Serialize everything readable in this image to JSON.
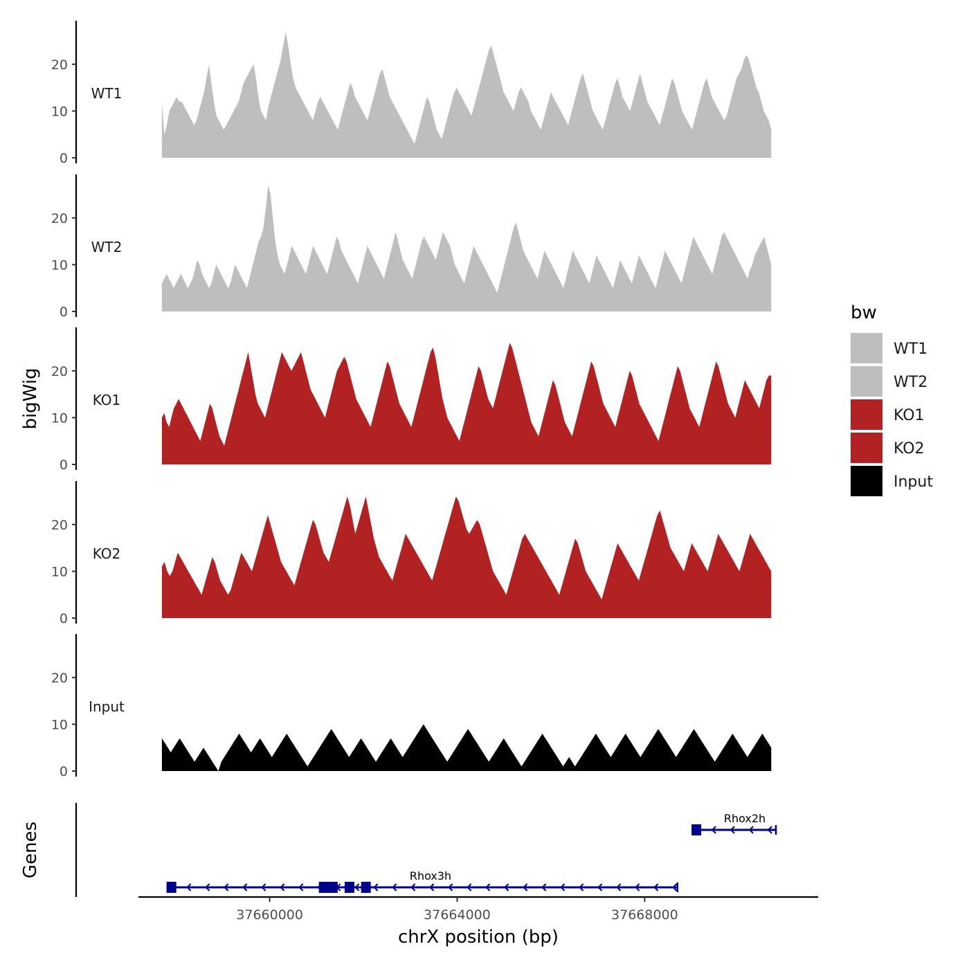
{
  "chart_data": {
    "type": "area",
    "title": "",
    "ylabel": "bigWig",
    "genes_ylabel": "Genes",
    "xlabel": "chrX position (bp)",
    "xlim": [
      37657200,
      37671700
    ],
    "x_start": 37657700,
    "x_end": 37670700,
    "x_ticks": [
      37660000,
      37664000,
      37668000
    ],
    "x_tick_labels": [
      "37660000",
      "37664000",
      "37668000"
    ],
    "ylim": [
      0,
      29
    ],
    "y_ticks": [
      0,
      10,
      20
    ],
    "y_tick_labels": [
      "0",
      "10",
      "20"
    ],
    "legend": {
      "title": "bw",
      "position": "right",
      "entries": [
        {
          "name": "WT1",
          "color": "#bebebe"
        },
        {
          "name": "WT2",
          "color": "#bebebe"
        },
        {
          "name": "KO1",
          "color": "#b22222"
        },
        {
          "name": "KO2",
          "color": "#b22222"
        },
        {
          "name": "Input",
          "color": "#000000"
        }
      ]
    },
    "series": [
      {
        "name": "WT1",
        "color": "#bebebe",
        "values": [
          12,
          5,
          7,
          10,
          11,
          12,
          13,
          12,
          12,
          11,
          10,
          9,
          8,
          7,
          8,
          10,
          12,
          14,
          17,
          20,
          16,
          12,
          9,
          8,
          7,
          6,
          7,
          8,
          9,
          10,
          11,
          12,
          14,
          16,
          17,
          18,
          19,
          20,
          17,
          13,
          10,
          9,
          8,
          11,
          13,
          15,
          17,
          19,
          21,
          24,
          27,
          24,
          20,
          17,
          15,
          14,
          13,
          12,
          11,
          10,
          9,
          8,
          10,
          12,
          13,
          12,
          11,
          10,
          9,
          8,
          7,
          6,
          8,
          10,
          12,
          14,
          16,
          15,
          13,
          12,
          11,
          10,
          9,
          8,
          10,
          12,
          14,
          16,
          18,
          19,
          17,
          15,
          13,
          12,
          11,
          10,
          9,
          8,
          7,
          6,
          5,
          4,
          3,
          5,
          7,
          9,
          11,
          13,
          12,
          10,
          8,
          6,
          5,
          4,
          6,
          8,
          10,
          12,
          14,
          15,
          14,
          13,
          12,
          11,
          10,
          9,
          11,
          13,
          15,
          17,
          19,
          21,
          23,
          24,
          22,
          20,
          18,
          16,
          14,
          13,
          12,
          11,
          10,
          12,
          14,
          15,
          14,
          13,
          12,
          10,
          9,
          8,
          7,
          6,
          8,
          10,
          12,
          14,
          13,
          12,
          11,
          10,
          9,
          8,
          7,
          9,
          11,
          13,
          15,
          17,
          18,
          16,
          14,
          12,
          10,
          9,
          8,
          7,
          6,
          8,
          10,
          12,
          14,
          16,
          17,
          15,
          13,
          12,
          11,
          10,
          12,
          14,
          16,
          18,
          16,
          14,
          12,
          11,
          10,
          9,
          8,
          7,
          9,
          11,
          13,
          15,
          17,
          16,
          14,
          12,
          10,
          9,
          8,
          7,
          6,
          8,
          10,
          12,
          14,
          16,
          17,
          15,
          13,
          12,
          11,
          10,
          9,
          8,
          9,
          11,
          13,
          15,
          17,
          18,
          19,
          21,
          22,
          21,
          19,
          17,
          15,
          14,
          12,
          10,
          9,
          8,
          6
        ]
      },
      {
        "name": "WT2",
        "color": "#bebebe",
        "values": [
          6,
          7,
          8,
          7,
          6,
          5,
          6,
          7,
          8,
          7,
          6,
          5,
          6,
          7,
          9,
          11,
          10,
          8,
          7,
          6,
          5,
          6,
          8,
          10,
          9,
          8,
          7,
          6,
          5,
          6,
          8,
          10,
          9,
          8,
          7,
          6,
          5,
          7,
          9,
          11,
          13,
          15,
          16,
          18,
          22,
          27,
          25,
          20,
          15,
          12,
          10,
          9,
          8,
          10,
          12,
          14,
          13,
          12,
          11,
          10,
          9,
          8,
          10,
          12,
          14,
          13,
          12,
          11,
          10,
          9,
          8,
          10,
          12,
          14,
          16,
          15,
          13,
          12,
          11,
          10,
          9,
          8,
          7,
          6,
          8,
          10,
          12,
          14,
          13,
          12,
          11,
          10,
          9,
          8,
          7,
          9,
          11,
          13,
          15,
          17,
          15,
          13,
          11,
          10,
          9,
          8,
          7,
          9,
          11,
          13,
          15,
          16,
          15,
          14,
          13,
          12,
          11,
          13,
          15,
          17,
          16,
          15,
          14,
          12,
          10,
          9,
          8,
          7,
          6,
          8,
          10,
          12,
          14,
          13,
          12,
          11,
          10,
          9,
          8,
          7,
          6,
          5,
          4,
          6,
          8,
          10,
          12,
          14,
          16,
          18,
          19,
          17,
          15,
          13,
          12,
          11,
          10,
          9,
          8,
          7,
          9,
          11,
          13,
          12,
          11,
          10,
          9,
          8,
          7,
          6,
          5,
          7,
          9,
          11,
          13,
          12,
          11,
          10,
          9,
          8,
          7,
          6,
          8,
          10,
          12,
          11,
          10,
          9,
          8,
          7,
          6,
          5,
          7,
          9,
          11,
          10,
          9,
          8,
          7,
          6,
          8,
          10,
          12,
          11,
          10,
          9,
          8,
          7,
          6,
          5,
          7,
          9,
          11,
          13,
          12,
          11,
          10,
          9,
          8,
          7,
          6,
          8,
          10,
          12,
          14,
          16,
          15,
          14,
          13,
          12,
          11,
          10,
          9,
          8,
          10,
          12,
          14,
          16,
          17,
          16,
          15,
          14,
          13,
          12,
          11,
          10,
          9,
          8,
          7,
          9,
          10,
          12,
          13,
          14,
          15,
          16,
          14,
          12,
          10
        ]
      },
      {
        "name": "KO1",
        "color": "#b22222",
        "values": [
          10,
          11,
          9,
          8,
          10,
          12,
          13,
          14,
          13,
          12,
          11,
          10,
          9,
          8,
          7,
          6,
          5,
          7,
          9,
          11,
          13,
          12,
          10,
          8,
          6,
          5,
          4,
          6,
          8,
          10,
          12,
          14,
          16,
          18,
          20,
          22,
          24,
          21,
          18,
          15,
          13,
          12,
          11,
          10,
          12,
          14,
          16,
          18,
          20,
          22,
          24,
          23,
          22,
          21,
          20,
          21,
          22,
          23,
          24,
          22,
          20,
          18,
          16,
          15,
          14,
          13,
          12,
          11,
          10,
          12,
          14,
          16,
          18,
          20,
          21,
          22,
          23,
          22,
          20,
          18,
          16,
          14,
          13,
          12,
          11,
          10,
          9,
          8,
          10,
          12,
          14,
          16,
          18,
          20,
          22,
          21,
          19,
          17,
          15,
          13,
          12,
          11,
          10,
          9,
          8,
          10,
          12,
          14,
          16,
          18,
          20,
          22,
          24,
          25,
          23,
          20,
          17,
          14,
          12,
          10,
          9,
          8,
          7,
          6,
          5,
          7,
          9,
          11,
          13,
          15,
          17,
          19,
          21,
          20,
          18,
          16,
          14,
          13,
          12,
          14,
          16,
          18,
          20,
          22,
          24,
          26,
          25,
          23,
          21,
          19,
          17,
          15,
          13,
          11,
          9,
          8,
          7,
          6,
          8,
          10,
          12,
          14,
          16,
          18,
          17,
          15,
          13,
          11,
          9,
          8,
          7,
          6,
          8,
          10,
          12,
          14,
          16,
          18,
          20,
          22,
          21,
          19,
          17,
          15,
          13,
          12,
          11,
          10,
          9,
          8,
          10,
          12,
          14,
          16,
          18,
          20,
          19,
          17,
          15,
          13,
          12,
          11,
          10,
          9,
          8,
          7,
          6,
          5,
          7,
          9,
          11,
          13,
          15,
          17,
          19,
          21,
          20,
          18,
          16,
          14,
          12,
          11,
          10,
          9,
          8,
          10,
          12,
          14,
          16,
          18,
          20,
          22,
          21,
          19,
          17,
          15,
          13,
          12,
          11,
          10,
          12,
          14,
          16,
          18,
          17,
          16,
          15,
          14,
          13,
          12,
          14,
          16,
          18,
          19,
          19
        ]
      },
      {
        "name": "KO2",
        "color": "#b22222",
        "values": [
          11,
          12,
          10,
          9,
          10,
          12,
          14,
          13,
          12,
          11,
          10,
          9,
          8,
          7,
          6,
          5,
          7,
          9,
          11,
          13,
          12,
          10,
          8,
          7,
          6,
          5,
          6,
          8,
          10,
          12,
          14,
          13,
          12,
          11,
          10,
          12,
          14,
          16,
          18,
          20,
          22,
          20,
          18,
          16,
          14,
          12,
          11,
          10,
          9,
          8,
          7,
          9,
          11,
          13,
          15,
          17,
          19,
          21,
          20,
          18,
          16,
          14,
          13,
          12,
          14,
          16,
          18,
          20,
          22,
          24,
          26,
          24,
          21,
          18,
          20,
          22,
          24,
          26,
          23,
          20,
          17,
          15,
          13,
          12,
          11,
          10,
          9,
          8,
          10,
          12,
          14,
          16,
          18,
          17,
          16,
          15,
          14,
          13,
          12,
          11,
          10,
          9,
          8,
          10,
          12,
          14,
          16,
          18,
          20,
          22,
          24,
          26,
          25,
          23,
          21,
          19,
          18,
          19,
          20,
          21,
          20,
          18,
          16,
          14,
          12,
          10,
          9,
          8,
          7,
          6,
          5,
          7,
          9,
          11,
          13,
          15,
          17,
          18,
          17,
          16,
          15,
          14,
          13,
          12,
          11,
          10,
          9,
          8,
          7,
          6,
          5,
          7,
          9,
          11,
          13,
          15,
          17,
          16,
          14,
          12,
          10,
          9,
          8,
          7,
          6,
          5,
          4,
          6,
          8,
          10,
          12,
          14,
          16,
          15,
          14,
          13,
          12,
          11,
          10,
          9,
          8,
          10,
          12,
          14,
          16,
          18,
          20,
          22,
          23,
          21,
          19,
          17,
          15,
          14,
          13,
          12,
          11,
          10,
          12,
          14,
          16,
          15,
          14,
          13,
          12,
          11,
          10,
          12,
          14,
          16,
          18,
          17,
          16,
          15,
          14,
          13,
          12,
          11,
          10,
          12,
          14,
          16,
          18,
          17,
          16,
          15,
          14,
          13,
          12,
          11,
          10
        ]
      },
      {
        "name": "Input",
        "color": "#000000",
        "values": [
          7,
          6,
          5,
          4,
          5,
          6,
          7,
          6,
          5,
          4,
          3,
          2,
          3,
          4,
          5,
          4,
          3,
          2,
          1,
          0,
          2,
          3,
          4,
          5,
          6,
          7,
          8,
          7,
          6,
          5,
          4,
          5,
          6,
          7,
          6,
          5,
          4,
          3,
          4,
          5,
          6,
          7,
          8,
          7,
          6,
          5,
          4,
          3,
          2,
          1,
          2,
          3,
          4,
          5,
          6,
          7,
          8,
          9,
          8,
          7,
          6,
          5,
          4,
          3,
          4,
          5,
          6,
          7,
          6,
          5,
          4,
          3,
          2,
          3,
          4,
          5,
          6,
          7,
          6,
          5,
          4,
          3,
          4,
          5,
          6,
          7,
          8,
          9,
          10,
          9,
          8,
          7,
          6,
          5,
          4,
          3,
          2,
          3,
          4,
          5,
          6,
          7,
          8,
          9,
          8,
          7,
          6,
          5,
          4,
          3,
          2,
          3,
          4,
          5,
          6,
          7,
          6,
          5,
          4,
          3,
          2,
          1,
          2,
          3,
          4,
          5,
          6,
          7,
          8,
          7,
          6,
          5,
          4,
          3,
          2,
          1,
          2,
          3,
          2,
          1,
          2,
          3,
          4,
          5,
          6,
          7,
          8,
          7,
          6,
          5,
          4,
          3,
          4,
          5,
          6,
          7,
          8,
          7,
          6,
          5,
          4,
          3,
          4,
          5,
          6,
          7,
          8,
          9,
          8,
          7,
          6,
          5,
          4,
          3,
          4,
          5,
          6,
          7,
          8,
          9,
          8,
          7,
          6,
          5,
          4,
          3,
          2,
          3,
          4,
          5,
          6,
          7,
          8,
          7,
          6,
          5,
          4,
          3,
          4,
          5,
          6,
          7,
          8,
          7,
          6,
          5
        ]
      }
    ],
    "genes": [
      {
        "name": "Rhox3h",
        "start": 37657800,
        "end": 37668700,
        "strand": "-",
        "row": 0,
        "exons": [
          [
            37657800,
            37658000
          ],
          [
            37661050,
            37661450
          ],
          [
            37661600,
            37661780
          ],
          [
            37661950,
            37662100
          ]
        ]
      },
      {
        "name": "Rhox2h",
        "start": 37669000,
        "end": 37670800,
        "strand": "-",
        "row": 1,
        "exons": [
          [
            37669000,
            37669200
          ]
        ]
      }
    ]
  }
}
